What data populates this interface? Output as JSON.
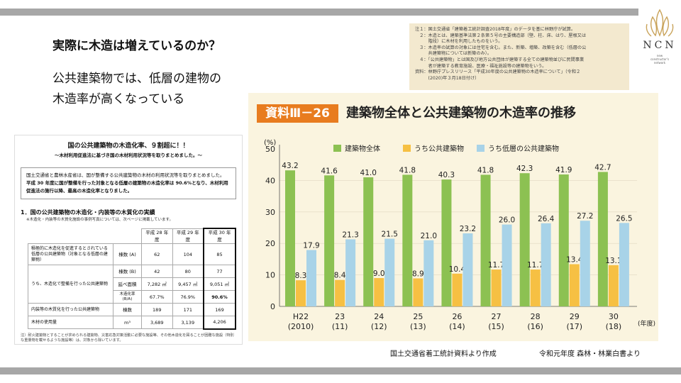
{
  "slide": {
    "title": "実際に木造は増えているのか？",
    "lead": "公共建築物では、低層の建物の木造率が高くなっている",
    "source_left": "国土交通省着工統計資料より作成",
    "source_right": "令和元年度 森林・林業白書より"
  },
  "logo": {
    "text": "NCN",
    "sub1": "new",
    "sub2": "constructor's",
    "sub3": "network",
    "color": "#c9a35a"
  },
  "doc": {
    "title": "国の公共建築物の木造化率、９割超に！！",
    "subtitle": "～木材利用促進法に基づき国の木材利用状況等を取りまとめました。～",
    "summary_1": "国土交通省と農林水産省は、国が整備する公共建築物の木材の利用状況等を取りまとめました。",
    "summary_2": "平成 30 年度に国が整備を行った対象となる低層の建築物の木造化率は 90.6%となり、木材利用促進法の施行以降、最高の木造化率となりました。",
    "section": "1．国の公共建築物の木造化・内装等の木質化の実績",
    "section_note": "※木造化・内装等の木質化施設の事例写真については、次ページに掲載しています。",
    "headers": [
      "平成 28 年度",
      "平成 29 年度",
      "平成 30 年度"
    ],
    "rows": [
      {
        "label": "積極的に木造化を促進するとされている低層の公共建築物（対象となる低層の建築物）",
        "item": "棟数 (A)",
        "v": [
          "62",
          "104",
          "85"
        ]
      },
      {
        "label": "うち、木造化で整備を行った公共建築物",
        "item": "棟数 (B)",
        "v": [
          "42",
          "80",
          "77"
        ]
      },
      {
        "label": "",
        "item": "延べ面積",
        "v": [
          "7,282 ㎡",
          "9,457 ㎡",
          "9,051 ㎡"
        ]
      },
      {
        "label": "",
        "item": "木造化率 (B/A)",
        "v": [
          "67.7%",
          "76.9%",
          "90.6%"
        ]
      },
      {
        "label": "内装等の木質化を行った公共建築物",
        "item": "棟数",
        "v": [
          "189",
          "171",
          "169"
        ]
      },
      {
        "label": "木材の使用量",
        "item": "m³",
        "v": [
          "3,689",
          "3,139",
          "4,206"
        ]
      }
    ],
    "footnote": "注）耐火建築物とすることが求められる建築物、災害応急対策活動に必要な施設等、その他木造化を図ることが困難な施設（特別な重量物を載せるような施設等）は、対象から除いています。"
  },
  "notes": {
    "lines": [
      "注１：国土交通省「建築着工統計調査2018年度」のデータを基に林野庁が試算。",
      "　２：木造とは、建築基準法第２条第５号の主要構造部（壁、柱、床、はり、屋根又は",
      "　　　階段）に木材を利用したものをいう。",
      "　３：木造率の試算の対象には住宅を含む。また、新築、増築、改築を含む（低層の公",
      "　　　共建築物については新築のみ）。",
      "　４：「公共建築物」とは国及び地方公共団体が建築する全ての建築物並びに民間事業",
      "　　　者が建築する教育施設、医療・福祉施設等の建築物をいう。",
      "資料：林野庁プレスリリース「平成30年度の公共建築物の木造率について」（令和２",
      "　　　(2020)年３月18日付け）"
    ]
  },
  "chart": {
    "tag": "資料Ⅲ－26",
    "title": "建築物全体と公共建築物の木造率の推移",
    "colors": {
      "accent": "#e87c1f",
      "green": "#8cc152",
      "yellow": "#f6c043",
      "blue": "#a8d3e8",
      "panel": "#faf4df"
    }
  },
  "chart_data": {
    "type": "bar",
    "ylabel": "(%)",
    "ylim": [
      0,
      50
    ],
    "yticks": [
      "0",
      "10",
      "20",
      "30",
      "40",
      "50"
    ],
    "xlabel": "(年度)",
    "categories": [
      "H22 (2010)",
      "23 (11)",
      "24 (12)",
      "25 (13)",
      "26 (14)",
      "27 (15)",
      "28 (16)",
      "29 (17)",
      "30 (18)"
    ],
    "category_top": [
      "H22",
      "23",
      "24",
      "25",
      "26",
      "27",
      "28",
      "29",
      "30"
    ],
    "category_bottom": [
      "(2010)",
      "(11)",
      "(12)",
      "(13)",
      "(14)",
      "(15)",
      "(16)",
      "(17)",
      "(18)"
    ],
    "legend_position": "top",
    "series": [
      {
        "name": "建築物全体",
        "color": "#8cc152",
        "values": [
          43.2,
          41.6,
          41.0,
          41.8,
          40.3,
          41.8,
          42.3,
          41.9,
          42.7
        ]
      },
      {
        "name": "うち公共建築物",
        "color": "#f6c043",
        "values": [
          8.3,
          8.4,
          9.0,
          8.9,
          10.4,
          11.7,
          11.7,
          13.4,
          13.1
        ]
      },
      {
        "name": "うち低層の公共建築物",
        "color": "#a8d3e8",
        "values": [
          17.9,
          21.3,
          21.5,
          21.0,
          23.2,
          26.0,
          26.4,
          27.2,
          26.5
        ]
      }
    ]
  }
}
